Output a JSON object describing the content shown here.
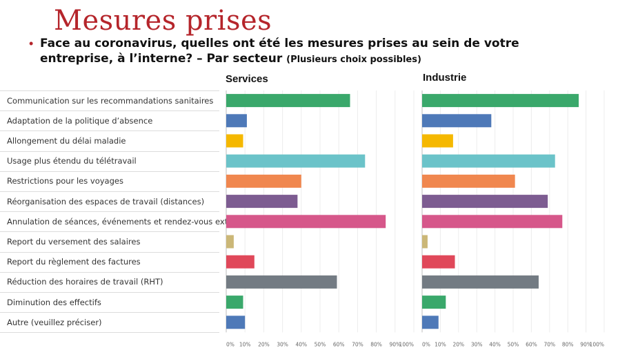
{
  "slide": {
    "title": "Mesures prises",
    "question_main": "Face au coronavirus, quelles ont été les mesures prises au sein de votre entreprise, à l’interne? – Par secteur",
    "question_note": "(Plusieurs choix possibles)"
  },
  "categories": [
    "Communication sur les recommandations sanitaires",
    "Adaptation de la politique d’absence",
    "Allongement du délai maladie",
    "Usage plus étendu du télétravail",
    "Restrictions pour les voyages",
    "Réorganisation des espaces de travail (distances)",
    "Annulation de séances, événements et rendez-vous extérieurs",
    "Report du versement des salaires",
    "Report du règlement des factures",
    "Réduction des horaires de travail (RHT)",
    "Diminution des effectifs",
    "Autre (veuillez préciser)"
  ],
  "colors": [
    "#3aa86b",
    "#4e79b8",
    "#f5b800",
    "#6bc3c9",
    "#f0874f",
    "#7d5c91",
    "#d6578a",
    "#cbb777",
    "#e0485a",
    "#737b83",
    "#3aa86b",
    "#4e79b8"
  ],
  "ticks": [
    "0%",
    "10%",
    "20%",
    "30%",
    "40%",
    "50%",
    "60%",
    "70%",
    "80%",
    "90%",
    "100%"
  ],
  "chart_data": [
    {
      "type": "bar",
      "orientation": "horizontal",
      "title": "Services",
      "xlim": [
        0,
        100
      ],
      "unit": "%",
      "values": [
        66,
        11,
        9,
        74,
        40,
        38,
        85,
        4,
        15,
        59,
        9,
        10
      ]
    },
    {
      "type": "bar",
      "orientation": "horizontal",
      "title": "Industrie",
      "xlim": [
        0,
        100
      ],
      "unit": "%",
      "values": [
        86,
        38,
        17,
        73,
        51,
        69,
        77,
        3,
        18,
        64,
        13,
        9
      ]
    }
  ]
}
